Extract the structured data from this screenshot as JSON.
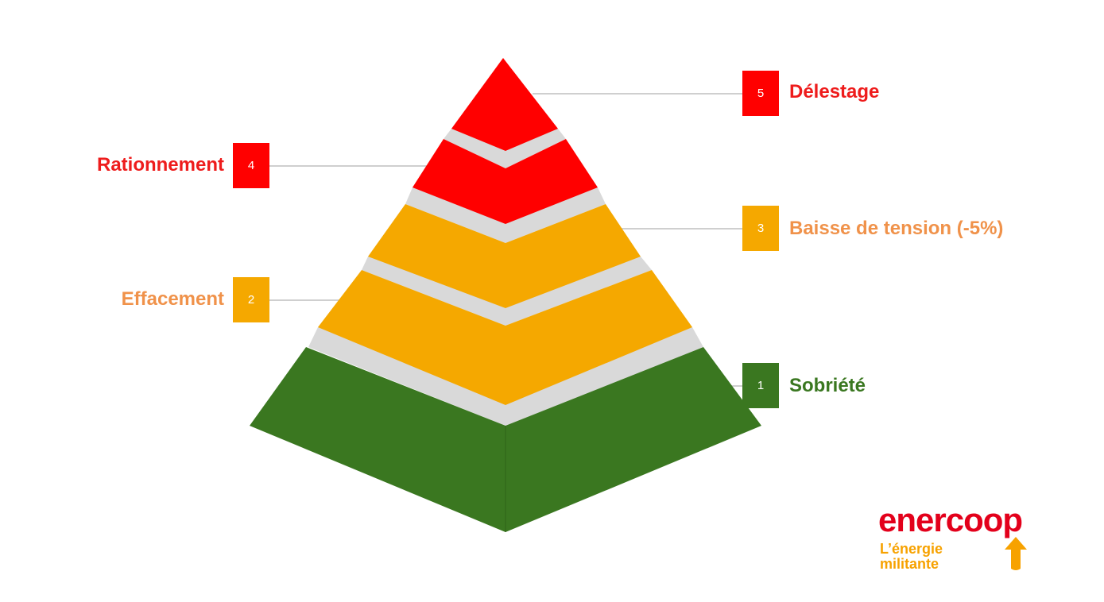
{
  "levels": [
    {
      "number": "1",
      "label": "Sobriété",
      "color": "#3a7720",
      "label_color": "#3a7720"
    },
    {
      "number": "2",
      "label": "Effacement",
      "color": "#f5a800",
      "label_color": "#f0924a"
    },
    {
      "number": "3",
      "label": "Baisse de tension (-5%)",
      "color": "#f5a800",
      "label_color": "#f0924a"
    },
    {
      "number": "4",
      "label": "Rationnement",
      "color": "#ff0000",
      "label_color": "#ee1c1c"
    },
    {
      "number": "5",
      "label": "Délestage",
      "color": "#ff0000",
      "label_color": "#ee1c1c"
    }
  ],
  "separator_color": "#d9d9d9",
  "connector_color": "#bfbfbf",
  "logo": {
    "brand": "enercoop",
    "tagline_line1": "L’énergie",
    "tagline_line2": "militante",
    "brand_color": "#e3001b",
    "tagline_color": "#f7a200"
  }
}
